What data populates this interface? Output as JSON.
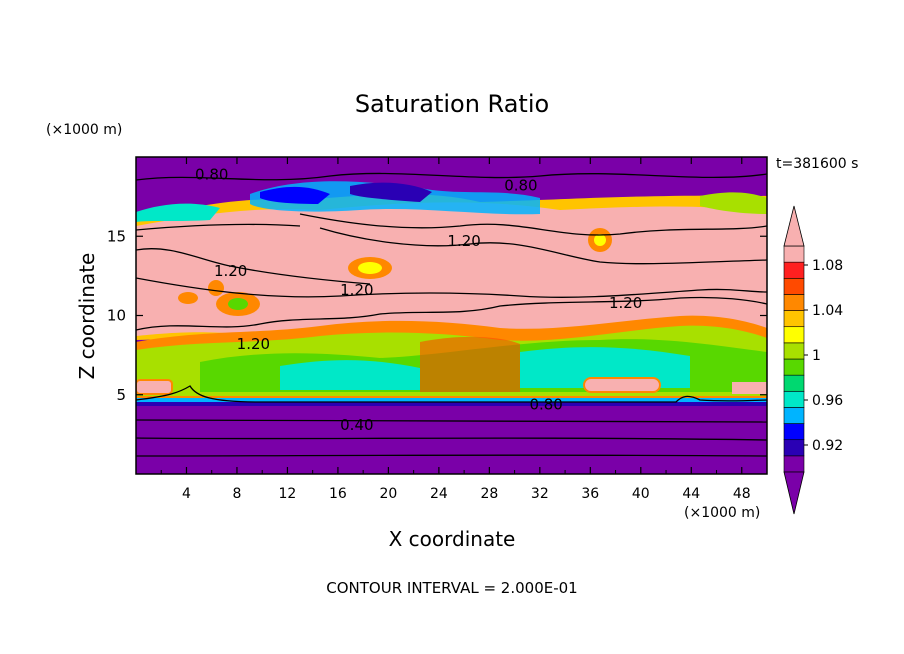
{
  "chart_data": {
    "type": "heatmap",
    "title": "Saturation Ratio",
    "xlabel": "X coordinate",
    "ylabel": "Z coordinate",
    "x_unit": "(×1000 m)",
    "y_unit": "(×1000 m)",
    "time_label": "t=381600 s",
    "footer": "CONTOUR INTERVAL = 2.000E-01",
    "xlim": [
      0,
      50
    ],
    "ylim": [
      0,
      20
    ],
    "x_ticks": [
      "4",
      "8",
      "12",
      "16",
      "20",
      "24",
      "28",
      "32",
      "36",
      "40",
      "44",
      "48"
    ],
    "y_ticks": [
      "5",
      "10",
      "15"
    ],
    "colorbar": {
      "labels": [
        "1.08",
        "1.04",
        "1",
        "0.96",
        "0.92"
      ],
      "colors": [
        "#7a00a8",
        "#2a00b4",
        "#0000ff",
        "#00b4ff",
        "#00e8c8",
        "#00d870",
        "#58d800",
        "#a8e000",
        "#ffff00",
        "#ffc400",
        "#ff8800",
        "#ff4a00",
        "#ff2020",
        "#f8b0b0"
      ]
    },
    "contour_labels": [
      {
        "text": "0.80",
        "x": 6,
        "z": 18.9
      },
      {
        "text": "0.80",
        "x": 30.5,
        "z": 18.2
      },
      {
        "text": "1.20",
        "x": 26,
        "z": 14.7
      },
      {
        "text": "1.20",
        "x": 7.5,
        "z": 12.8
      },
      {
        "text": "1.20",
        "x": 17.5,
        "z": 11.6
      },
      {
        "text": "1.20",
        "x": 38.8,
        "z": 10.8
      },
      {
        "text": "1.20",
        "x": 9.3,
        "z": 8.2
      },
      {
        "text": "0.80",
        "x": 32.5,
        "z": 4.4
      },
      {
        "text": "0.40",
        "x": 17.5,
        "z": 3.1
      }
    ]
  }
}
